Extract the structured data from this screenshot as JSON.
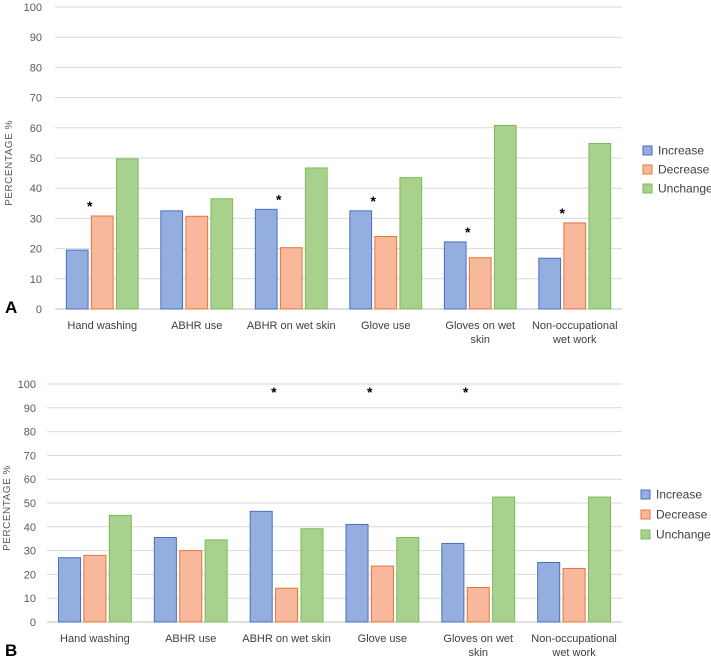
{
  "colors": {
    "Increase": {
      "fill": "#95aee0",
      "stroke": "#4a6fbe"
    },
    "Decrease": {
      "fill": "#f7b89c",
      "stroke": "#e8743b"
    },
    "Unchanged": {
      "fill": "#a9d18e",
      "stroke": "#7fba57"
    },
    "grid": "#d9d9d9",
    "axis": "#bfbfbf"
  },
  "chart_data": [
    {
      "type": "bar",
      "panel_label": "A",
      "title": "",
      "ylabel": "PERCENTAGE %",
      "xlabel": "",
      "ylim": [
        0,
        100
      ],
      "yticks": [
        0,
        10,
        20,
        30,
        40,
        50,
        60,
        70,
        80,
        90,
        100
      ],
      "grid": true,
      "legend": "right",
      "categories": [
        [
          "Hand washing"
        ],
        [
          "ABHR use"
        ],
        [
          "ABHR on wet skin"
        ],
        [
          "Glove use"
        ],
        [
          "Gloves on wet",
          "skin"
        ],
        [
          "Non-occupational",
          "wet work"
        ]
      ],
      "series": [
        {
          "name": "Increase",
          "values": [
            19.5,
            32.5,
            33,
            32.5,
            22.2,
            16.8
          ]
        },
        {
          "name": "Decrease",
          "values": [
            30.8,
            30.7,
            20.3,
            24,
            17,
            28.5
          ]
        },
        {
          "name": "Unchanged",
          "values": [
            49.7,
            36.5,
            46.7,
            43.5,
            60.8,
            54.8
          ]
        }
      ],
      "significant": [
        true,
        false,
        true,
        true,
        true,
        true
      ],
      "significance_marker": "*"
    },
    {
      "type": "bar",
      "panel_label": "B",
      "title": "",
      "ylabel": "PERCENTAGE %",
      "xlabel": "",
      "ylim": [
        0,
        100
      ],
      "yticks": [
        0,
        10,
        20,
        30,
        40,
        50,
        60,
        70,
        80,
        90,
        100
      ],
      "grid": true,
      "legend": "right",
      "categories": [
        [
          "Hand washing"
        ],
        [
          "ABHR use"
        ],
        [
          "ABHR on wet skin"
        ],
        [
          "Glove use"
        ],
        [
          "Gloves on wet",
          "skin"
        ],
        [
          "Non-occupational",
          "wet work"
        ]
      ],
      "series": [
        {
          "name": "Increase",
          "values": [
            27,
            35.5,
            46.5,
            41,
            33,
            25
          ]
        },
        {
          "name": "Decrease",
          "values": [
            28,
            30,
            14.2,
            23.5,
            14.5,
            22.5
          ]
        },
        {
          "name": "Unchanged",
          "values": [
            44.8,
            34.5,
            39.2,
            35.5,
            52.5,
            52.5
          ]
        }
      ],
      "significant": [
        false,
        false,
        true,
        true,
        true,
        false
      ],
      "significance_marker": "*"
    }
  ]
}
